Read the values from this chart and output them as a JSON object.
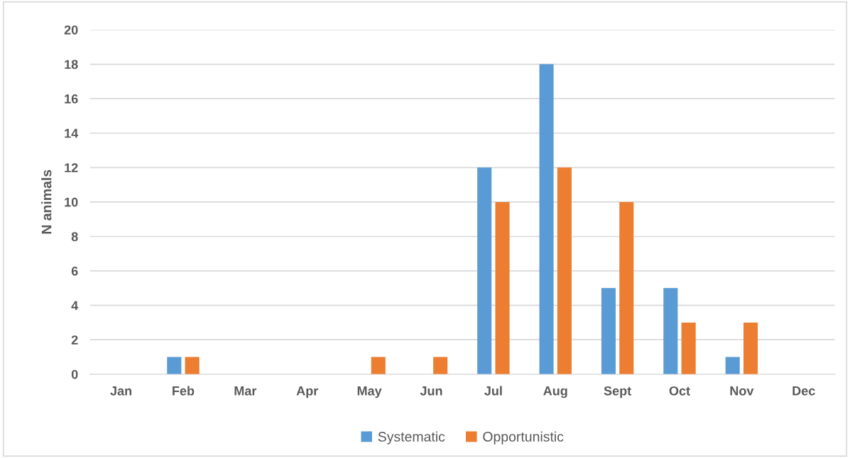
{
  "chart_data": {
    "type": "bar",
    "ylabel": "N animals",
    "categories": [
      "Jan",
      "Feb",
      "Mar",
      "Apr",
      "May",
      "Jun",
      "Jul",
      "Aug",
      "Sept",
      "Oct",
      "Nov",
      "Dec"
    ],
    "series": [
      {
        "name": "Systematic",
        "color": "#5b9bd5",
        "values": [
          0,
          1,
          0,
          0,
          0,
          0,
          12,
          18,
          5,
          5,
          1,
          0
        ]
      },
      {
        "name": "Opportunistic",
        "color": "#ed7d31",
        "values": [
          0,
          1,
          0,
          0,
          1,
          1,
          10,
          12,
          10,
          3,
          3,
          0
        ]
      }
    ],
    "ylim": [
      0,
      20
    ],
    "yticks": [
      0,
      2,
      4,
      6,
      8,
      10,
      12,
      14,
      16,
      18,
      20
    ],
    "grid": "y",
    "legend": "bottom"
  }
}
